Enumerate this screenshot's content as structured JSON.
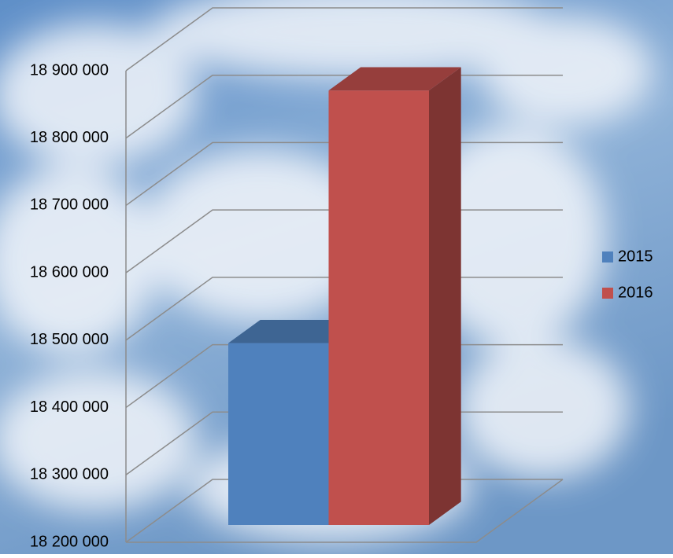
{
  "chart_data": {
    "type": "bar3d",
    "categories": [
      ""
    ],
    "series": [
      {
        "name": "2015",
        "color": "#4f81bd",
        "values": [
          18470000
        ]
      },
      {
        "name": "2016",
        "color": "#c0504d",
        "values": [
          18845000
        ]
      }
    ],
    "ylim": [
      18200000,
      18900000
    ],
    "yticks": [
      {
        "value": 18200000,
        "label": "18 200 000"
      },
      {
        "value": 18300000,
        "label": "18 300 000"
      },
      {
        "value": 18400000,
        "label": "18 400 000"
      },
      {
        "value": 18500000,
        "label": "18 500 000"
      },
      {
        "value": 18600000,
        "label": "18 600 000"
      },
      {
        "value": 18700000,
        "label": "18 700 000"
      },
      {
        "value": 18800000,
        "label": "18 800 000"
      },
      {
        "value": 18900000,
        "label": "18 900 000"
      }
    ],
    "grid": true,
    "legend": "right"
  }
}
